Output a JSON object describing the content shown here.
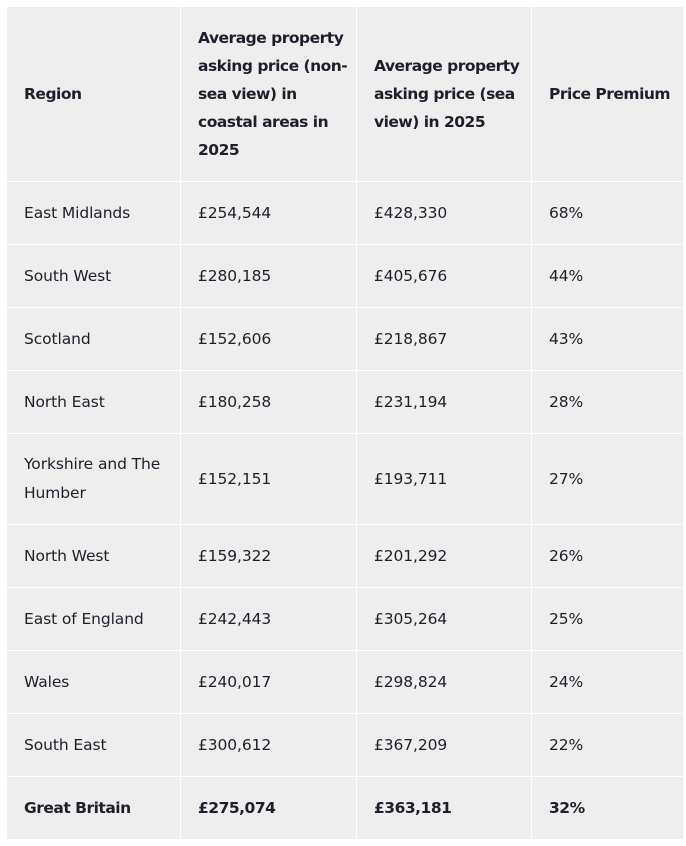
{
  "table": {
    "headers": [
      "Region",
      "Average property asking price (non-sea view) in coastal areas in 2025",
      "Average property asking price (sea view) in 2025",
      "Price Premium"
    ],
    "rows": [
      {
        "region": "East Midlands",
        "non_sea_view": "£254,544",
        "sea_view": "£428,330",
        "premium": "68%"
      },
      {
        "region": "South West",
        "non_sea_view": "£280,185",
        "sea_view": "£405,676",
        "premium": "44%"
      },
      {
        "region": "Scotland",
        "non_sea_view": "£152,606",
        "sea_view": "£218,867",
        "premium": "43%"
      },
      {
        "region": "North East",
        "non_sea_view": "£180,258",
        "sea_view": "£231,194",
        "premium": "28%"
      },
      {
        "region": "Yorkshire and The Humber",
        "non_sea_view": "£152,151",
        "sea_view": "£193,711",
        "premium": "27%"
      },
      {
        "region": "North West",
        "non_sea_view": "£159,322",
        "sea_view": "£201,292",
        "premium": "26%"
      },
      {
        "region": "East of England",
        "non_sea_view": "£242,443",
        "sea_view": "£305,264",
        "premium": "25%"
      },
      {
        "region": "Wales",
        "non_sea_view": "£240,017",
        "sea_view": "£298,824",
        "premium": "24%"
      },
      {
        "region": "South East",
        "non_sea_view": "£300,612",
        "sea_view": "£367,209",
        "premium": "22%"
      },
      {
        "region": "Great Britain",
        "non_sea_view": "£275,074",
        "sea_view": "£363,181",
        "premium": "32%"
      }
    ]
  }
}
